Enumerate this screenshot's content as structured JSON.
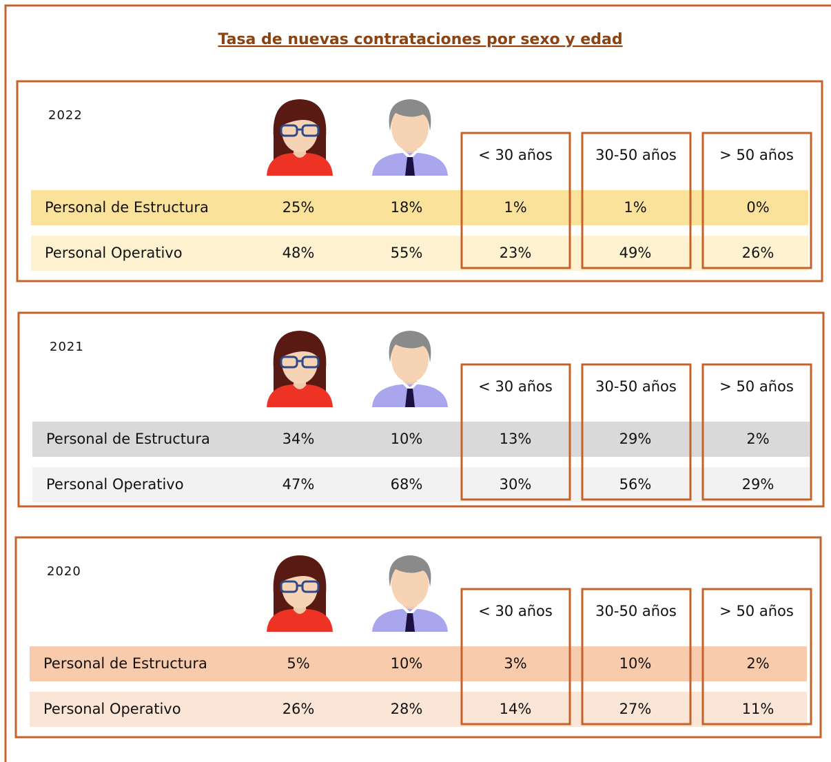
{
  "title": "Tasa de nuevas contrataciones por sexo y edad",
  "panels": [
    {
      "year": "2022",
      "headers": [
        "< 30 años",
        "30-50 años",
        "> 50 años"
      ],
      "rows": [
        {
          "label": "Personal de Estructura",
          "values": [
            "25%",
            "18%",
            "1%",
            "1%",
            "0%"
          ]
        },
        {
          "label": "Personal Operativo",
          "values": [
            "48%",
            "55%",
            "23%",
            "49%",
            "26%"
          ]
        }
      ]
    },
    {
      "year": "2021",
      "headers": [
        "< 30 años",
        "30-50 años",
        "> 50 años"
      ],
      "rows": [
        {
          "label": "Personal de Estructura",
          "values": [
            "34%",
            "10%",
            "13%",
            "29%",
            "2%"
          ]
        },
        {
          "label": "Personal Operativo",
          "values": [
            "47%",
            "68%",
            "30%",
            "56%",
            "29%"
          ]
        }
      ]
    },
    {
      "year": "2020",
      "headers": [
        "< 30 años",
        "30-50 años",
        "> 50 años"
      ],
      "rows": [
        {
          "label": "Personal de Estructura",
          "values": [
            "5%",
            "10%",
            "3%",
            "10%",
            "2%"
          ]
        },
        {
          "label": "Personal Operativo",
          "values": [
            "26%",
            "28%",
            "14%",
            "27%",
            "11%"
          ]
        }
      ]
    }
  ]
}
